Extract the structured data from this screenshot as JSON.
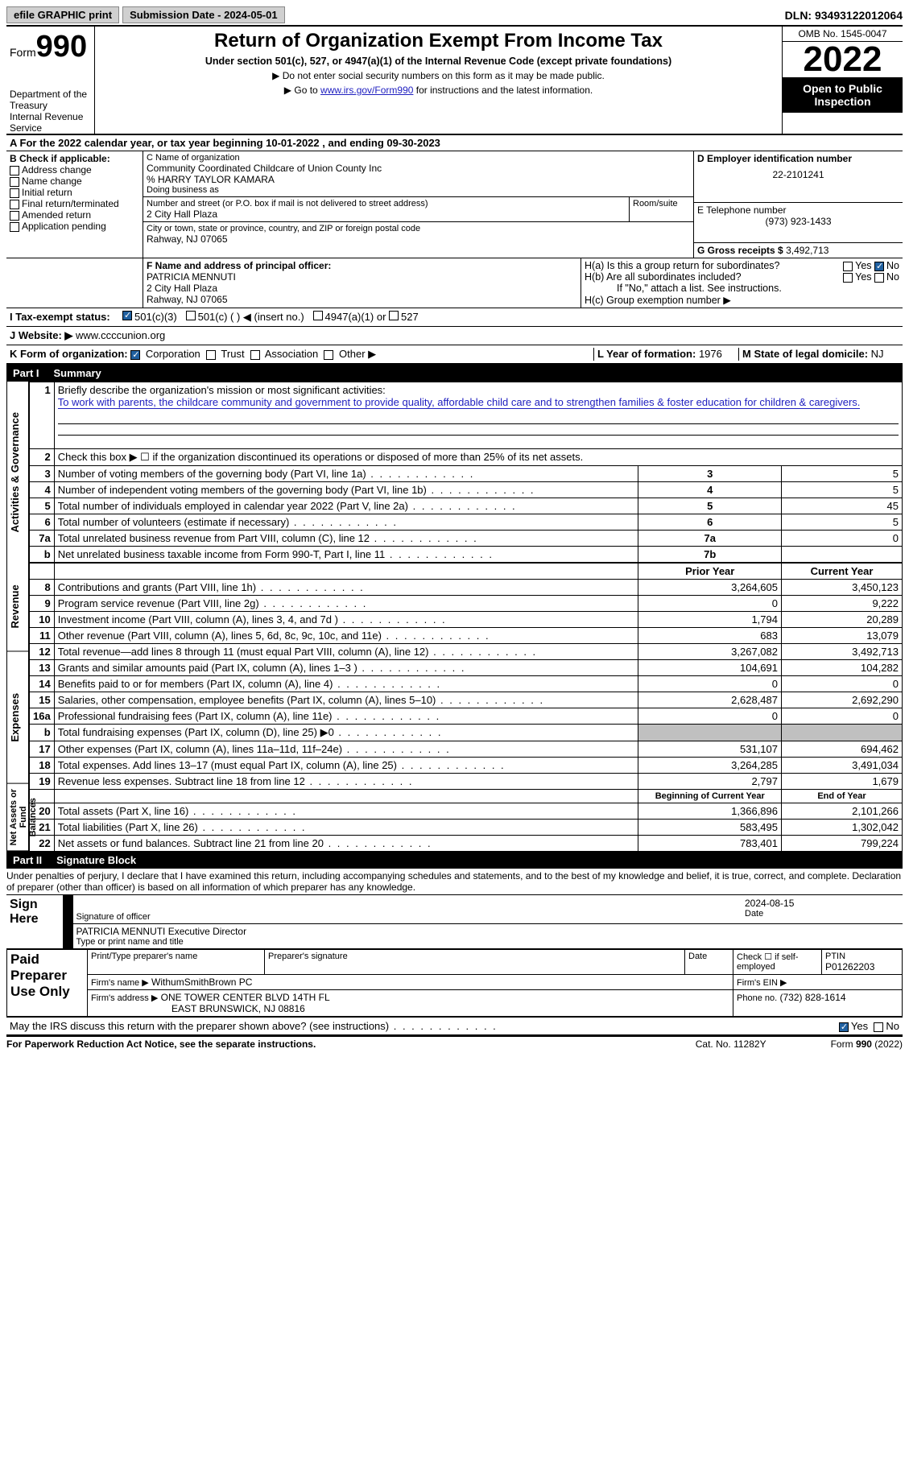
{
  "topbar": {
    "efile_label": "efile GRAPHIC print",
    "submission_label": "Submission Date - 2024-05-01",
    "dln_label": "DLN: 93493122012064"
  },
  "header": {
    "form_word": "Form",
    "form_number": "990",
    "dept": "Department of the Treasury",
    "irs": "Internal Revenue Service",
    "title": "Return of Organization Exempt From Income Tax",
    "subtitle1": "Under section 501(c), 527, or 4947(a)(1) of the Internal Revenue Code (except private foundations)",
    "subtitle2": "▶ Do not enter social security numbers on this form as it may be made public.",
    "subtitle3_pre": "▶ Go to ",
    "subtitle3_link": "www.irs.gov/Form990",
    "subtitle3_post": " for instructions and the latest information.",
    "omb": "OMB No. 1545-0047",
    "year": "2022",
    "open1": "Open to Public",
    "open2": "Inspection"
  },
  "sectionA": {
    "line": "A For the 2022 calendar year, or tax year beginning 10-01-2022    , and ending 09-30-2023"
  },
  "B": {
    "label": "B Check if applicable:",
    "opts": [
      "Address change",
      "Name change",
      "Initial return",
      "Final return/terminated",
      "Amended return",
      "Application pending"
    ]
  },
  "C": {
    "label": "C Name of organization",
    "name1": "Community Coordinated Childcare of Union County Inc",
    "name2": "% HARRY TAYLOR KAMARA",
    "dba_label": "Doing business as",
    "street_label": "Number and street (or P.O. box if mail is not delivered to street address)",
    "room_label": "Room/suite",
    "street": "2 City Hall Plaza",
    "city_label": "City or town, state or province, country, and ZIP or foreign postal code",
    "city": "Rahway, NJ  07065"
  },
  "D": {
    "label": "D Employer identification number",
    "value": "22-2101241"
  },
  "E": {
    "label": "E Telephone number",
    "value": "(973) 923-1433"
  },
  "G": {
    "label": "G Gross receipts $",
    "value": "3,492,713"
  },
  "F": {
    "label": "F  Name and address of principal officer:",
    "name": "PATRICIA MENNUTI",
    "addr1": "2 City Hall Plaza",
    "addr2": "Rahway, NJ  07065"
  },
  "H": {
    "a": "H(a)  Is this a group return for subordinates?",
    "b": "H(b)  Are all subordinates included?",
    "bnote": "If \"No,\" attach a list. See instructions.",
    "c": "H(c)  Group exemption number ▶",
    "yes": "Yes",
    "no": "No"
  },
  "I": {
    "label": "I    Tax-exempt status:",
    "o1": "501(c)(3)",
    "o2": "501(c) (  ) ◀ (insert no.)",
    "o3": "4947(a)(1) or",
    "o4": "527"
  },
  "J": {
    "label": "J   Website: ▶",
    "value": "www.ccccunion.org"
  },
  "K": {
    "label": "K Form of organization:",
    "o1": "Corporation",
    "o2": "Trust",
    "o3": "Association",
    "o4": "Other ▶"
  },
  "L": {
    "label": "L Year of formation:",
    "value": "1976"
  },
  "M": {
    "label": "M State of legal domicile:",
    "value": "NJ"
  },
  "partI": {
    "label": "Part I",
    "title": "Summary"
  },
  "summary": {
    "side1": "Activities & Governance",
    "side2": "Revenue",
    "side3": "Expenses",
    "side4": "Net Assets or Fund Balances",
    "line1_label": "Briefly describe the organization's mission or most significant activities:",
    "line1_text": "To work with parents, the childcare community and government to provide quality, affordable child care and to strengthen families & foster education for children & caregivers.",
    "line2": "Check this box ▶ ☐  if the organization discontinued its operations or disposed of more than 25% of its net assets.",
    "rows_ag": [
      {
        "n": "3",
        "d": "Number of voting members of the governing body (Part VI, line 1a)",
        "c": "3",
        "v": "5"
      },
      {
        "n": "4",
        "d": "Number of independent voting members of the governing body (Part VI, line 1b)",
        "c": "4",
        "v": "5"
      },
      {
        "n": "5",
        "d": "Total number of individuals employed in calendar year 2022 (Part V, line 2a)",
        "c": "5",
        "v": "45"
      },
      {
        "n": "6",
        "d": "Total number of volunteers (estimate if necessary)",
        "c": "6",
        "v": "5"
      },
      {
        "n": "7a",
        "d": "Total unrelated business revenue from Part VIII, column (C), line 12",
        "c": "7a",
        "v": "0"
      },
      {
        "n": "b",
        "d": "Net unrelated business taxable income from Form 990-T, Part I, line 11",
        "c": "7b",
        "v": ""
      }
    ],
    "prior_label": "Prior Year",
    "current_label": "Current Year",
    "rows_rev": [
      {
        "n": "8",
        "d": "Contributions and grants (Part VIII, line 1h)",
        "p": "3,264,605",
        "c": "3,450,123"
      },
      {
        "n": "9",
        "d": "Program service revenue (Part VIII, line 2g)",
        "p": "0",
        "c": "9,222"
      },
      {
        "n": "10",
        "d": "Investment income (Part VIII, column (A), lines 3, 4, and 7d )",
        "p": "1,794",
        "c": "20,289"
      },
      {
        "n": "11",
        "d": "Other revenue (Part VIII, column (A), lines 5, 6d, 8c, 9c, 10c, and 11e)",
        "p": "683",
        "c": "13,079"
      },
      {
        "n": "12",
        "d": "Total revenue—add lines 8 through 11 (must equal Part VIII, column (A), line 12)",
        "p": "3,267,082",
        "c": "3,492,713"
      }
    ],
    "rows_exp": [
      {
        "n": "13",
        "d": "Grants and similar amounts paid (Part IX, column (A), lines 1–3 )",
        "p": "104,691",
        "c": "104,282"
      },
      {
        "n": "14",
        "d": "Benefits paid to or for members (Part IX, column (A), line 4)",
        "p": "0",
        "c": "0"
      },
      {
        "n": "15",
        "d": "Salaries, other compensation, employee benefits (Part IX, column (A), lines 5–10)",
        "p": "2,628,487",
        "c": "2,692,290"
      },
      {
        "n": "16a",
        "d": "Professional fundraising fees (Part IX, column (A), line 11e)",
        "p": "0",
        "c": "0"
      },
      {
        "n": "b",
        "d": "Total fundraising expenses (Part IX, column (D), line 25) ▶0",
        "p": "GREY",
        "c": "GREY"
      },
      {
        "n": "17",
        "d": "Other expenses (Part IX, column (A), lines 11a–11d, 11f–24e)",
        "p": "531,107",
        "c": "694,462"
      },
      {
        "n": "18",
        "d": "Total expenses. Add lines 13–17 (must equal Part IX, column (A), line 25)",
        "p": "3,264,285",
        "c": "3,491,034"
      },
      {
        "n": "19",
        "d": "Revenue less expenses. Subtract line 18 from line 12",
        "p": "2,797",
        "c": "1,679"
      }
    ],
    "begin_label": "Beginning of Current Year",
    "end_label": "End of Year",
    "rows_net": [
      {
        "n": "20",
        "d": "Total assets (Part X, line 16)",
        "p": "1,366,896",
        "c": "2,101,266"
      },
      {
        "n": "21",
        "d": "Total liabilities (Part X, line 26)",
        "p": "583,495",
        "c": "1,302,042"
      },
      {
        "n": "22",
        "d": "Net assets or fund balances. Subtract line 21 from line 20",
        "p": "783,401",
        "c": "799,224"
      }
    ]
  },
  "partII": {
    "label": "Part II",
    "title": "Signature Block"
  },
  "sig": {
    "penalty": "Under penalties of perjury, I declare that I have examined this return, including accompanying schedules and statements, and to the best of my knowledge and belief, it is true, correct, and complete. Declaration of preparer (other than officer) is based on all information of which preparer has any knowledge.",
    "sign_here": "Sign Here",
    "sig_officer": "Signature of officer",
    "date": "Date",
    "date_val": "2024-08-15",
    "name_title": "PATRICIA MENNUTI Executive Director",
    "type_label": "Type or print name and title",
    "paid": "Paid Preparer Use Only",
    "prep_name_label": "Print/Type preparer's name",
    "prep_sig_label": "Preparer's signature",
    "date_label": "Date",
    "check_label": "Check ☐ if self-employed",
    "ptin_label": "PTIN",
    "ptin": "P01262203",
    "firm_name_label": "Firm's name    ▶",
    "firm_name": "WithumSmithBrown PC",
    "firm_ein_label": "Firm's EIN ▶",
    "firm_addr_label": "Firm's address ▶",
    "firm_addr1": "ONE TOWER CENTER BLVD 14TH FL",
    "firm_addr2": "EAST BRUNSWICK, NJ  08816",
    "phone_label": "Phone no.",
    "phone": "(732) 828-1614",
    "discuss": "May the IRS discuss this return with the preparer shown above? (see instructions)",
    "yes": "Yes",
    "no": "No"
  },
  "footer": {
    "left": "For Paperwork Reduction Act Notice, see the separate instructions.",
    "mid": "Cat. No. 11282Y",
    "right": "Form 990 (2022)"
  },
  "colors": {
    "link": "#2020c0",
    "header_bg": "#000000",
    "check_bg": "#2060a0",
    "grey": "#c0c0c0"
  }
}
